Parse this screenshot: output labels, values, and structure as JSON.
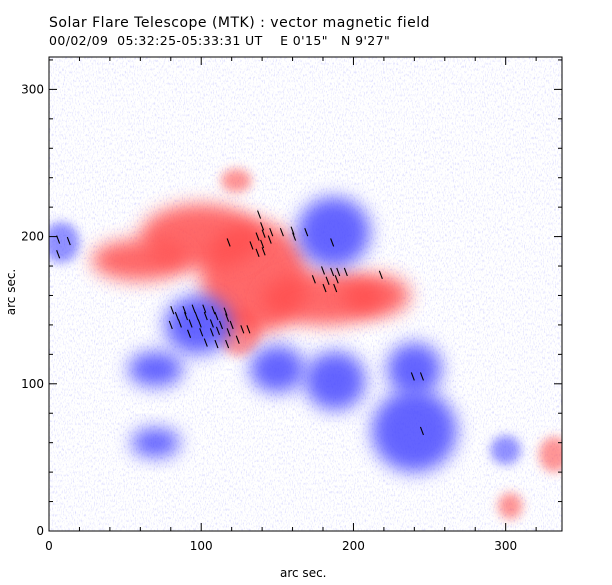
{
  "header": {
    "title": "Solar Flare Telescope (MTK) : vector magnetic field",
    "subtitle": "00/02/09  05:32:25-05:33:31 UT    E 0'15\"   N 9'27\""
  },
  "axes": {
    "xlabel": "arc sec.",
    "ylabel": "arc sec.",
    "x_ticks": [
      0,
      100,
      200,
      300
    ],
    "y_ticks": [
      0,
      100,
      200,
      300
    ],
    "xlim": [
      0,
      337
    ],
    "ylim": [
      0,
      322
    ]
  },
  "colors": {
    "positive": "#ff5050",
    "negative": "#4a4aff",
    "vector": "#000000"
  },
  "regions": [
    {
      "polarity": "positive",
      "cx": 135,
      "cy": 172,
      "rx": 35,
      "ry": 38
    },
    {
      "polarity": "positive",
      "cx": 100,
      "cy": 200,
      "rx": 40,
      "ry": 22
    },
    {
      "polarity": "positive",
      "cx": 60,
      "cy": 184,
      "rx": 32,
      "ry": 14
    },
    {
      "polarity": "positive",
      "cx": 180,
      "cy": 158,
      "rx": 40,
      "ry": 18
    },
    {
      "polarity": "positive",
      "cx": 215,
      "cy": 160,
      "rx": 22,
      "ry": 14
    },
    {
      "polarity": "positive",
      "cx": 125,
      "cy": 135,
      "rx": 14,
      "ry": 16
    },
    {
      "polarity": "positive",
      "cx": 123,
      "cy": 238,
      "rx": 10,
      "ry": 8
    },
    {
      "polarity": "positive",
      "cx": 303,
      "cy": 17,
      "rx": 8,
      "ry": 9
    },
    {
      "polarity": "positive",
      "cx": 332,
      "cy": 52,
      "rx": 10,
      "ry": 12
    },
    {
      "polarity": "negative",
      "cx": 187,
      "cy": 203,
      "rx": 24,
      "ry": 24
    },
    {
      "polarity": "negative",
      "cx": 98,
      "cy": 140,
      "rx": 22,
      "ry": 20
    },
    {
      "polarity": "negative",
      "cx": 188,
      "cy": 102,
      "rx": 20,
      "ry": 20
    },
    {
      "polarity": "negative",
      "cx": 150,
      "cy": 110,
      "rx": 18,
      "ry": 16
    },
    {
      "polarity": "negative",
      "cx": 240,
      "cy": 68,
      "rx": 28,
      "ry": 28
    },
    {
      "polarity": "negative",
      "cx": 240,
      "cy": 110,
      "rx": 18,
      "ry": 18
    },
    {
      "polarity": "negative",
      "cx": 8,
      "cy": 196,
      "rx": 12,
      "ry": 14
    },
    {
      "polarity": "negative",
      "cx": 300,
      "cy": 55,
      "rx": 10,
      "ry": 10
    },
    {
      "polarity": "negative",
      "cx": 70,
      "cy": 110,
      "rx": 18,
      "ry": 12
    },
    {
      "polarity": "negative",
      "cx": 70,
      "cy": 60,
      "rx": 16,
      "ry": 10
    }
  ],
  "vectors": [
    [
      6,
      198
    ],
    [
      13,
      197
    ],
    [
      6,
      188
    ],
    [
      118,
      196
    ],
    [
      133,
      194
    ],
    [
      140,
      195
    ],
    [
      138,
      215
    ],
    [
      140,
      207
    ],
    [
      146,
      203
    ],
    [
      153,
      203
    ],
    [
      160,
      204
    ],
    [
      137,
      200
    ],
    [
      141,
      202
    ],
    [
      145,
      198
    ],
    [
      137,
      189
    ],
    [
      141,
      190
    ],
    [
      161,
      200
    ],
    [
      169,
      203
    ],
    [
      186,
      196
    ],
    [
      174,
      171
    ],
    [
      180,
      177
    ],
    [
      186,
      176
    ],
    [
      190,
      176
    ],
    [
      195,
      176
    ],
    [
      183,
      170
    ],
    [
      189,
      171
    ],
    [
      181,
      165
    ],
    [
      188,
      165
    ],
    [
      218,
      174
    ],
    [
      81,
      150
    ],
    [
      89,
      150
    ],
    [
      95,
      151
    ],
    [
      102,
      151
    ],
    [
      108,
      150
    ],
    [
      116,
      149
    ],
    [
      84,
      146
    ],
    [
      90,
      146
    ],
    [
      97,
      146
    ],
    [
      103,
      146
    ],
    [
      110,
      146
    ],
    [
      117,
      145
    ],
    [
      80,
      140
    ],
    [
      86,
      141
    ],
    [
      93,
      141
    ],
    [
      99,
      141
    ],
    [
      107,
      141
    ],
    [
      113,
      140
    ],
    [
      120,
      140
    ],
    [
      92,
      134
    ],
    [
      100,
      135
    ],
    [
      107,
      135
    ],
    [
      111,
      136
    ],
    [
      118,
      135
    ],
    [
      127,
      137
    ],
    [
      131,
      137
    ],
    [
      103,
      128
    ],
    [
      110,
      127
    ],
    [
      117,
      127
    ],
    [
      124,
      130
    ],
    [
      239,
      105
    ],
    [
      245,
      105
    ],
    [
      245,
      68
    ]
  ]
}
